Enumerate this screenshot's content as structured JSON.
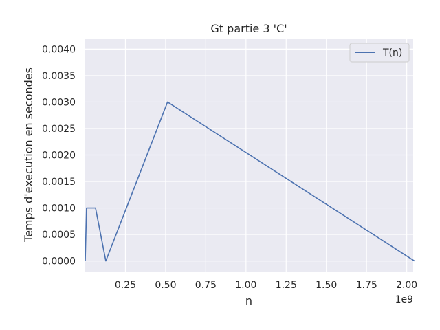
{
  "chart_data": {
    "type": "line",
    "title": "Gt partie 3 'C'",
    "xlabel": "n",
    "ylabel": "Temps d'execution en secondes",
    "x_offset_label": "1e9",
    "x_scale": 1000000000,
    "xlim": [
      0,
      2040000000
    ],
    "ylim": [
      -0.0002,
      0.0042
    ],
    "x_ticks": [
      250000000,
      500000000,
      750000000,
      1000000000,
      1250000000,
      1500000000,
      1750000000,
      2000000000
    ],
    "x_tick_labels": [
      "0.25",
      "0.50",
      "0.75",
      "1.00",
      "1.25",
      "1.50",
      "1.75",
      "2.00"
    ],
    "y_ticks": [
      0.0,
      0.0005,
      0.001,
      0.0015,
      0.002,
      0.0025,
      0.003,
      0.0035,
      0.004
    ],
    "y_tick_labels": [
      "0.0000",
      "0.0005",
      "0.0010",
      "0.0015",
      "0.0020",
      "0.0025",
      "0.0030",
      "0.0035",
      "0.0040"
    ],
    "grid": true,
    "legend_position": "top-right",
    "series": [
      {
        "name": "T(n)",
        "color": "#4c72b0",
        "x": [
          1000,
          8000000,
          16000000,
          32000000,
          64000000,
          128000000,
          512000000,
          2048000000
        ],
        "y": [
          0.0,
          0.001,
          0.001,
          0.001,
          0.001,
          0.0,
          0.003,
          0.0
        ]
      }
    ]
  },
  "colors": {
    "plot_background": "#eaeaf2",
    "grid": "#ffffff",
    "text": "#262626"
  }
}
